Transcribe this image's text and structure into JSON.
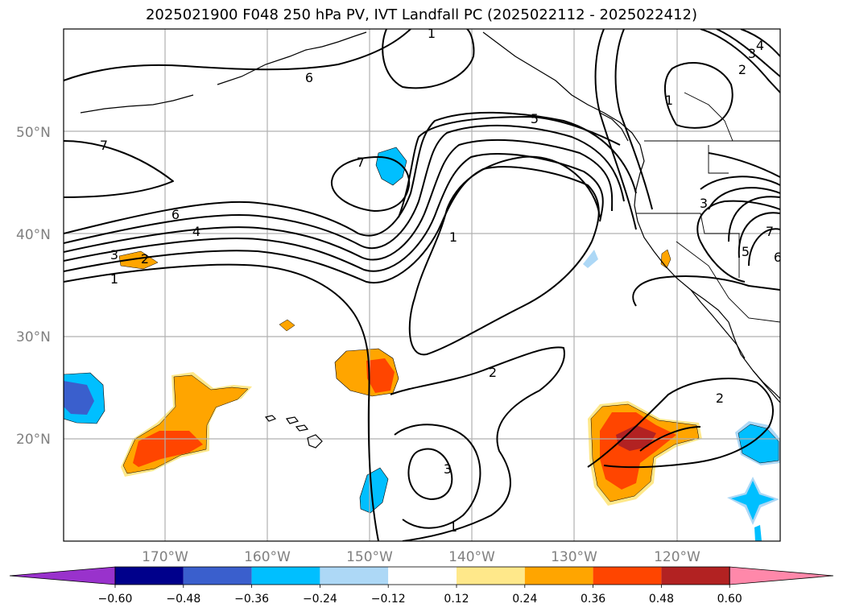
{
  "title": "2025021900 F048 250 hPa PV, IVT Landfall PC (2025022112 - 2025022412)",
  "map": {
    "lat_labels": [
      "50°N",
      "40°N",
      "30°N",
      "20°N"
    ],
    "lon_labels": [
      "170°W",
      "160°W",
      "150°W",
      "140°W",
      "130°W",
      "120°W"
    ]
  },
  "contour_labels": [
    "1",
    "6",
    "5",
    "7",
    "7",
    "6",
    "4",
    "3",
    "2",
    "1",
    "1",
    "2",
    "3",
    "1",
    "2",
    "3",
    "4",
    "2",
    "1",
    "3",
    "5",
    "6",
    "7"
  ],
  "colorbar": {
    "colors": [
      "#9932cc",
      "#00008b",
      "#3a5fcd",
      "#00bfff",
      "#add8f6",
      "#ffffff",
      "#ffe88a",
      "#ffa500",
      "#ff4500",
      "#b22222",
      "#ff88aa"
    ],
    "tick_labels": [
      "−0.60",
      "−0.48",
      "−0.36",
      "−0.24",
      "−0.12",
      "0.12",
      "0.24",
      "0.36",
      "0.48",
      "0.60"
    ]
  }
}
